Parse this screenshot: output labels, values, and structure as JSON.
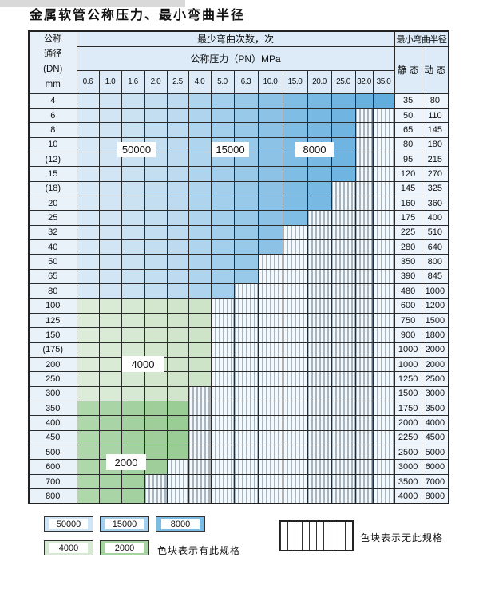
{
  "title": "金属软管公称压力、最小弯曲半径",
  "table": {
    "corner_lines": [
      "公称",
      "通径",
      "(DN)",
      "mm"
    ],
    "bend_header": "最少弯曲次数，次",
    "pressure_header": "公称压力（PN）MPa",
    "radius_header": "最小弯曲半径",
    "static_label": "静 态",
    "dynamic_label": "动 态",
    "pressures": [
      "0.6",
      "1.0",
      "1.6",
      "2.0",
      "2.5",
      "4.0",
      "5.0",
      "6.3",
      "10.0",
      "15.0",
      "20.0",
      "25.0",
      "32.0",
      "35.0"
    ],
    "rows": [
      {
        "dn": "4",
        "colored": 14,
        "zone": "blue",
        "static": "35",
        "dynamic": "80"
      },
      {
        "dn": "6",
        "colored": 12,
        "zone": "blue",
        "static": "50",
        "dynamic": "110"
      },
      {
        "dn": "8",
        "colored": 12,
        "zone": "blue",
        "static": "65",
        "dynamic": "145"
      },
      {
        "dn": "10",
        "colored": 12,
        "zone": "blue",
        "static": "80",
        "dynamic": "180"
      },
      {
        "dn": "(12)",
        "colored": 12,
        "zone": "blue",
        "static": "95",
        "dynamic": "215"
      },
      {
        "dn": "15",
        "colored": 12,
        "zone": "blue",
        "static": "120",
        "dynamic": "270"
      },
      {
        "dn": "(18)",
        "colored": 11,
        "zone": "blue",
        "static": "145",
        "dynamic": "325"
      },
      {
        "dn": "20",
        "colored": 11,
        "zone": "blue",
        "static": "160",
        "dynamic": "360"
      },
      {
        "dn": "25",
        "colored": 10,
        "zone": "blue",
        "static": "175",
        "dynamic": "400"
      },
      {
        "dn": "32",
        "colored": 9,
        "zone": "blue",
        "static": "225",
        "dynamic": "510"
      },
      {
        "dn": "40",
        "colored": 9,
        "zone": "blue",
        "static": "280",
        "dynamic": "640"
      },
      {
        "dn": "50",
        "colored": 8,
        "zone": "blue",
        "static": "350",
        "dynamic": "800"
      },
      {
        "dn": "65",
        "colored": 8,
        "zone": "blue",
        "static": "390",
        "dynamic": "845"
      },
      {
        "dn": "80",
        "colored": 7,
        "zone": "blue",
        "static": "480",
        "dynamic": "1000"
      },
      {
        "dn": "100",
        "colored": 6,
        "zone": "green_light",
        "static": "600",
        "dynamic": "1200"
      },
      {
        "dn": "125",
        "colored": 6,
        "zone": "green_light",
        "static": "750",
        "dynamic": "1500"
      },
      {
        "dn": "150",
        "colored": 6,
        "zone": "green_light",
        "static": "900",
        "dynamic": "1800"
      },
      {
        "dn": "(175)",
        "colored": 6,
        "zone": "green_light",
        "static": "1000",
        "dynamic": "2000"
      },
      {
        "dn": "200",
        "colored": 6,
        "zone": "green_light",
        "static": "1000",
        "dynamic": "2000"
      },
      {
        "dn": "250",
        "colored": 6,
        "zone": "green_light",
        "static": "1250",
        "dynamic": "2500"
      },
      {
        "dn": "300",
        "colored": 5,
        "zone": "green_light",
        "static": "1500",
        "dynamic": "3000"
      },
      {
        "dn": "350",
        "colored": 5,
        "zone": "green_dark",
        "static": "1750",
        "dynamic": "3500"
      },
      {
        "dn": "400",
        "colored": 5,
        "zone": "green_dark",
        "static": "2000",
        "dynamic": "4000"
      },
      {
        "dn": "450",
        "colored": 5,
        "zone": "green_dark",
        "static": "2250",
        "dynamic": "4500"
      },
      {
        "dn": "500",
        "colored": 5,
        "zone": "green_dark",
        "static": "2500",
        "dynamic": "5000"
      },
      {
        "dn": "600",
        "colored": 4,
        "zone": "green_dark",
        "static": "3000",
        "dynamic": "6000"
      },
      {
        "dn": "700",
        "colored": 3,
        "zone": "green_dark",
        "static": "3500",
        "dynamic": "7000"
      },
      {
        "dn": "800",
        "colored": 3,
        "zone": "green_dark",
        "static": "4000",
        "dynamic": "8000"
      }
    ]
  },
  "zone_labels": [
    "50000",
    "15000",
    "8000",
    "4000",
    "2000"
  ],
  "colors": {
    "blue_cols": [
      "#d7e9f6",
      "#d1e5f4",
      "#cbe2f3",
      "#c4def1",
      "#bddaf0",
      "#afd5ee",
      "#a4cfec",
      "#99c9e9",
      "#8bc2e6",
      "#80bde4",
      "#78b9e3",
      "#70b5e1",
      "#68b1df",
      "#61addd"
    ],
    "green_light_cols": [
      "#dcecd8",
      "#d9ead5",
      "#d6e9d2",
      "#d3e7cf",
      "#d0e5cc",
      "#cde4c9"
    ],
    "green_dark_cols": [
      "#aed7aa",
      "#a9d4a5",
      "#a4d1a0",
      "#9fce9b",
      "#9acc96"
    ],
    "border": "#2b2b2b"
  },
  "legend": {
    "row1": [
      {
        "label": "50000",
        "color": "#cfe4f4"
      },
      {
        "label": "15000",
        "color": "#a4cfec"
      },
      {
        "label": "8000",
        "color": "#7cbce4"
      }
    ],
    "row2": [
      {
        "label": "4000",
        "color": "#d6e9d2"
      },
      {
        "label": "2000",
        "color": "#a6d2a1"
      }
    ],
    "has_spec_text": "色块表示有此规格",
    "no_spec_text": "色块表示无此规格"
  }
}
